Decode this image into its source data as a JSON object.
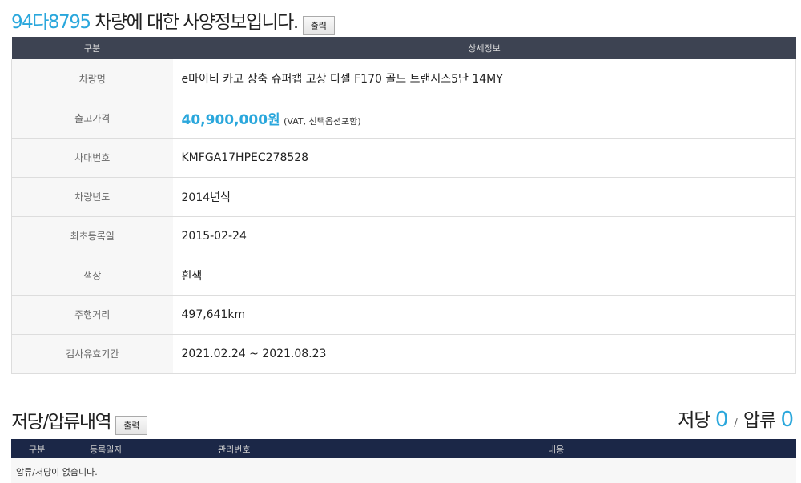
{
  "header": {
    "plate": "94다8795",
    "title_rest": " 차량에 대한 사양정보입니다.",
    "print_label": "출력"
  },
  "spec_table": {
    "columns": [
      "구분",
      "상세정보"
    ],
    "rows": [
      {
        "label": "차량명",
        "value": "e마이티 카고 장축 슈퍼캡 고상 디젤 F170 골드 트랜시스5단 14MY"
      },
      {
        "label": "출고가격",
        "value": "40,900,000원",
        "note": "(VAT, 선택옵션포함)"
      },
      {
        "label": "차대번호",
        "value": "KMFGA17HPEC278528"
      },
      {
        "label": "차량년도",
        "value": "2014년식"
      },
      {
        "label": "최초등록일",
        "value": "2015-02-24"
      },
      {
        "label": "색상",
        "value": "흰색"
      },
      {
        "label": "주행거리",
        "value": "497,641km"
      },
      {
        "label": "검사유효기간",
        "value": "2021.02.24 ~ 2021.08.23"
      }
    ]
  },
  "lien": {
    "title": "저당/압류내역",
    "print_label": "출력",
    "mortgage_label": "저당",
    "mortgage_count": "0",
    "sep": "/",
    "seizure_label": "압류",
    "seizure_count": "0",
    "columns": [
      "구분",
      "등록일자",
      "관리번호",
      "내용"
    ],
    "empty_message": "압류/저당이 없습니다."
  },
  "colors": {
    "accent": "#2aa7dc",
    "header_dark": "#3d4352",
    "header_navy": "#1b2747"
  }
}
